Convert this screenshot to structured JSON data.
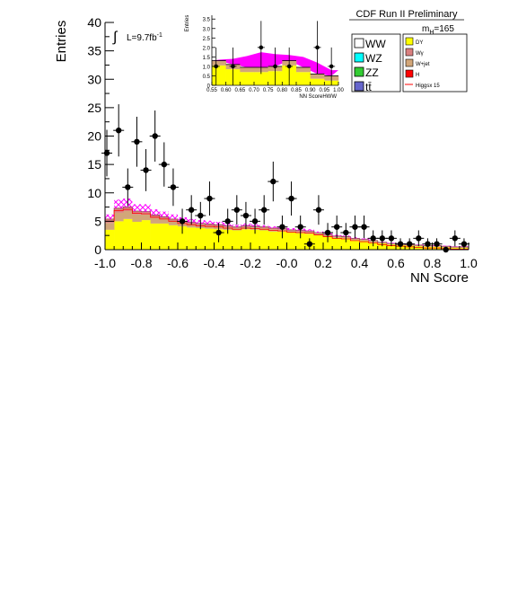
{
  "chart_data": {
    "type": "stacked-histogram-with-data-points",
    "experiment": "CDF Run II Preliminary",
    "mass_label": "m",
    "mass_sub": "H",
    "mass_value": "=165",
    "lumi_label": "L=9.7fb",
    "lumi_sup": "-1",
    "xlabel": "NN Score",
    "ylabel": "Entries",
    "xlim": [
      -1.0,
      1.0
    ],
    "ylim": [
      0,
      40
    ],
    "xticks": [
      "-1.0",
      "-0.8",
      "-0.6",
      "-0.4",
      "-0.2",
      "-0.0",
      "0.2",
      "0.4",
      "0.6",
      "0.8",
      "1.0"
    ],
    "xtick_values": [
      -1.0,
      -0.8,
      -0.6,
      -0.4,
      -0.2,
      0.0,
      0.2,
      0.4,
      0.6,
      0.8,
      1.0
    ],
    "yticks": [
      "0",
      "5",
      "10",
      "15",
      "20",
      "25",
      "30",
      "35",
      "40"
    ],
    "ytick_values": [
      0,
      5,
      10,
      15,
      20,
      25,
      30,
      35,
      40
    ],
    "bin_edges": [
      -1.0,
      -0.95,
      -0.9,
      -0.85,
      -0.8,
      -0.75,
      -0.7,
      -0.65,
      -0.6,
      -0.55,
      -0.5,
      -0.45,
      -0.4,
      -0.35,
      -0.3,
      -0.25,
      -0.2,
      -0.15,
      -0.1,
      -0.05,
      0.0,
      0.05,
      0.1,
      0.15,
      0.2,
      0.25,
      0.3,
      0.35,
      0.4,
      0.45,
      0.5,
      0.55,
      0.6,
      0.65,
      0.7,
      0.75,
      0.8,
      0.85,
      0.9,
      0.95,
      1.0
    ],
    "stack": [
      {
        "name": "DY",
        "color": "#ffff00",
        "values": [
          3.5,
          5.0,
          5.4,
          4.9,
          5.2,
          4.6,
          4.6,
          4.3,
          4.1,
          3.9,
          3.8,
          3.7,
          3.6,
          3.5,
          3.4,
          3.6,
          3.5,
          3.4,
          3.2,
          3.2,
          3.0,
          2.9,
          2.8,
          2.6,
          2.3,
          2.1,
          2.0,
          1.7,
          1.5,
          1.3,
          1.1,
          0.9,
          0.8,
          0.7,
          0.6,
          0.5,
          0.5,
          0.4,
          0.3,
          0.3
        ]
      },
      {
        "name": "W+jet",
        "color": "#d2a679",
        "values": [
          1.2,
          1.5,
          1.4,
          1.3,
          1.0,
          1.0,
          0.8,
          0.7,
          0.6,
          0.6,
          0.5,
          0.5,
          0.5,
          0.5,
          0.4,
          0.4,
          0.4,
          0.4,
          0.4,
          0.3,
          0.3,
          0.3,
          0.3,
          0.3,
          0.3,
          0.2,
          0.2,
          0.2,
          0.2,
          0.2,
          0.1,
          0.1,
          0.1,
          0.1,
          0.1,
          0.1,
          0.1,
          0.1,
          0.1,
          0.1
        ]
      },
      {
        "name": "Wγ",
        "color": "#d98080",
        "values": [
          0.7,
          0.8,
          0.7,
          0.6,
          0.5,
          0.5,
          0.4,
          0.4,
          0.3,
          0.3,
          0.3,
          0.3,
          0.3,
          0.2,
          0.2,
          0.2,
          0.2,
          0.2,
          0.2,
          0.2,
          0.2,
          0.2,
          0.2,
          0.1,
          0.1,
          0.1,
          0.1,
          0.1,
          0.1,
          0.1,
          0.1,
          0.1,
          0.1,
          0.1,
          0.1,
          0.1,
          0.1,
          0.1,
          0.1,
          0.1
        ]
      }
    ],
    "signal": {
      "name": "Higgsx 15",
      "color": "#ff00ff",
      "values": [
        0.8,
        1.5,
        1.5,
        1.2,
        1.3,
        1.0,
        0.9,
        0.8,
        0.7,
        0.6,
        0.6,
        0.6,
        0.5,
        0.5,
        0.4,
        0.4,
        0.4,
        0.3,
        0.3,
        0.3,
        0.3,
        0.3,
        0.3,
        0.2,
        0.2,
        0.2,
        0.2,
        0.2,
        0.2,
        0.2,
        0.1,
        0.1,
        0.1,
        0.1,
        0.1,
        0.1,
        0.1,
        0.1,
        0.1,
        0.1
      ]
    },
    "data_points": [
      {
        "x": -0.99,
        "y": 17,
        "err": 4.1
      },
      {
        "x": -0.925,
        "y": 21,
        "err": 4.6
      },
      {
        "x": -0.875,
        "y": 11,
        "err": 3.3
      },
      {
        "x": -0.825,
        "y": 19,
        "err": 4.4
      },
      {
        "x": -0.775,
        "y": 14,
        "err": 3.7
      },
      {
        "x": -0.725,
        "y": 20,
        "err": 4.5
      },
      {
        "x": -0.675,
        "y": 15,
        "err": 3.9
      },
      {
        "x": -0.625,
        "y": 11,
        "err": 3.3
      },
      {
        "x": -0.575,
        "y": 5,
        "err": 2.2
      },
      {
        "x": -0.525,
        "y": 7,
        "err": 2.6
      },
      {
        "x": -0.475,
        "y": 6,
        "err": 2.4
      },
      {
        "x": -0.425,
        "y": 9,
        "err": 3.0
      },
      {
        "x": -0.375,
        "y": 3,
        "err": 1.7
      },
      {
        "x": -0.325,
        "y": 5,
        "err": 2.2
      },
      {
        "x": -0.275,
        "y": 7,
        "err": 2.6
      },
      {
        "x": -0.225,
        "y": 6,
        "err": 2.4
      },
      {
        "x": -0.175,
        "y": 5,
        "err": 2.2
      },
      {
        "x": -0.125,
        "y": 7,
        "err": 2.6
      },
      {
        "x": -0.075,
        "y": 12,
        "err": 3.5
      },
      {
        "x": -0.025,
        "y": 4,
        "err": 2.0
      },
      {
        "x": 0.025,
        "y": 9,
        "err": 3.0
      },
      {
        "x": 0.075,
        "y": 4,
        "err": 2.0
      },
      {
        "x": 0.125,
        "y": 1,
        "err": 1.0
      },
      {
        "x": 0.175,
        "y": 7,
        "err": 2.6
      },
      {
        "x": 0.225,
        "y": 3,
        "err": 1.7
      },
      {
        "x": 0.275,
        "y": 4,
        "err": 2.0
      },
      {
        "x": 0.325,
        "y": 3,
        "err": 1.7
      },
      {
        "x": 0.375,
        "y": 4,
        "err": 2.0
      },
      {
        "x": 0.425,
        "y": 4,
        "err": 2.0
      },
      {
        "x": 0.475,
        "y": 2,
        "err": 1.4
      },
      {
        "x": 0.525,
        "y": 2,
        "err": 1.4
      },
      {
        "x": 0.575,
        "y": 2,
        "err": 1.4
      },
      {
        "x": 0.625,
        "y": 1,
        "err": 1.0
      },
      {
        "x": 0.675,
        "y": 1,
        "err": 1.0
      },
      {
        "x": 0.725,
        "y": 2,
        "err": 1.4
      },
      {
        "x": 0.775,
        "y": 1,
        "err": 1.0
      },
      {
        "x": 0.825,
        "y": 1,
        "err": 1.0
      },
      {
        "x": 0.875,
        "y": 0,
        "err": 0.5
      },
      {
        "x": 0.925,
        "y": 2,
        "err": 1.4
      },
      {
        "x": 0.975,
        "y": 1,
        "err": 1.0
      }
    ],
    "inset": {
      "xlabel": "NN ScoreHWW",
      "ylabel": "Entries",
      "xlim": [
        0.55,
        1.0
      ],
      "ylim": [
        0,
        3.7
      ],
      "xticks": [
        "0.55",
        "0.60",
        "0.65",
        "0.70",
        "0.75",
        "0.80",
        "0.85",
        "0.90",
        "0.95",
        "1.00"
      ],
      "xtick_values": [
        0.55,
        0.6,
        0.65,
        0.7,
        0.75,
        0.8,
        0.85,
        0.9,
        0.95,
        1.0
      ],
      "yticks": [
        "0",
        "0.5",
        "1.0",
        "1.5",
        "2.0",
        "2.5",
        "3.0",
        "3.5"
      ],
      "ytick_values": [
        0,
        0.5,
        1.0,
        1.5,
        2.0,
        2.5,
        3.0,
        3.5
      ],
      "bin_edges": [
        0.55,
        0.6,
        0.65,
        0.7,
        0.75,
        0.8,
        0.85,
        0.9,
        0.95,
        1.0
      ],
      "stack_total": [
        1.3,
        1.1,
        0.95,
        0.95,
        1.0,
        1.3,
        0.95,
        0.6,
        0.5
      ],
      "signal_top": [
        1.35,
        1.4,
        1.55,
        1.75,
        1.65,
        1.6,
        1.5,
        1.2,
        0.8
      ],
      "data_points": [
        {
          "x": 0.565,
          "y": 1,
          "err": 1.0
        },
        {
          "x": 0.625,
          "y": 1,
          "err": 1.0
        },
        {
          "x": 0.725,
          "y": 2,
          "err": 1.4
        },
        {
          "x": 0.775,
          "y": 1,
          "err": 1.0
        },
        {
          "x": 0.825,
          "y": 1,
          "err": 1.0
        },
        {
          "x": 0.925,
          "y": 2,
          "err": 1.4
        },
        {
          "x": 0.975,
          "y": 1,
          "err": 1.0
        }
      ]
    },
    "legend_left": [
      {
        "label": "WW",
        "color": "#ffffff"
      },
      {
        "label": "WZ",
        "color": "#00ffff"
      },
      {
        "label": "ZZ",
        "color": "#33cc33"
      },
      {
        "label": "tt̄",
        "color": "#6666cc"
      }
    ],
    "legend_right": [
      {
        "label": "DY",
        "color": "#ffff00",
        "kind": "box"
      },
      {
        "label": "Wγ",
        "color": "#d98080",
        "kind": "box"
      },
      {
        "label": "W+jet",
        "color": "#d2a679",
        "kind": "box"
      },
      {
        "label": "H",
        "color": "#ff0000",
        "kind": "box"
      },
      {
        "label": "Higgsx 15",
        "color": "#ff0000",
        "kind": "line"
      }
    ]
  }
}
